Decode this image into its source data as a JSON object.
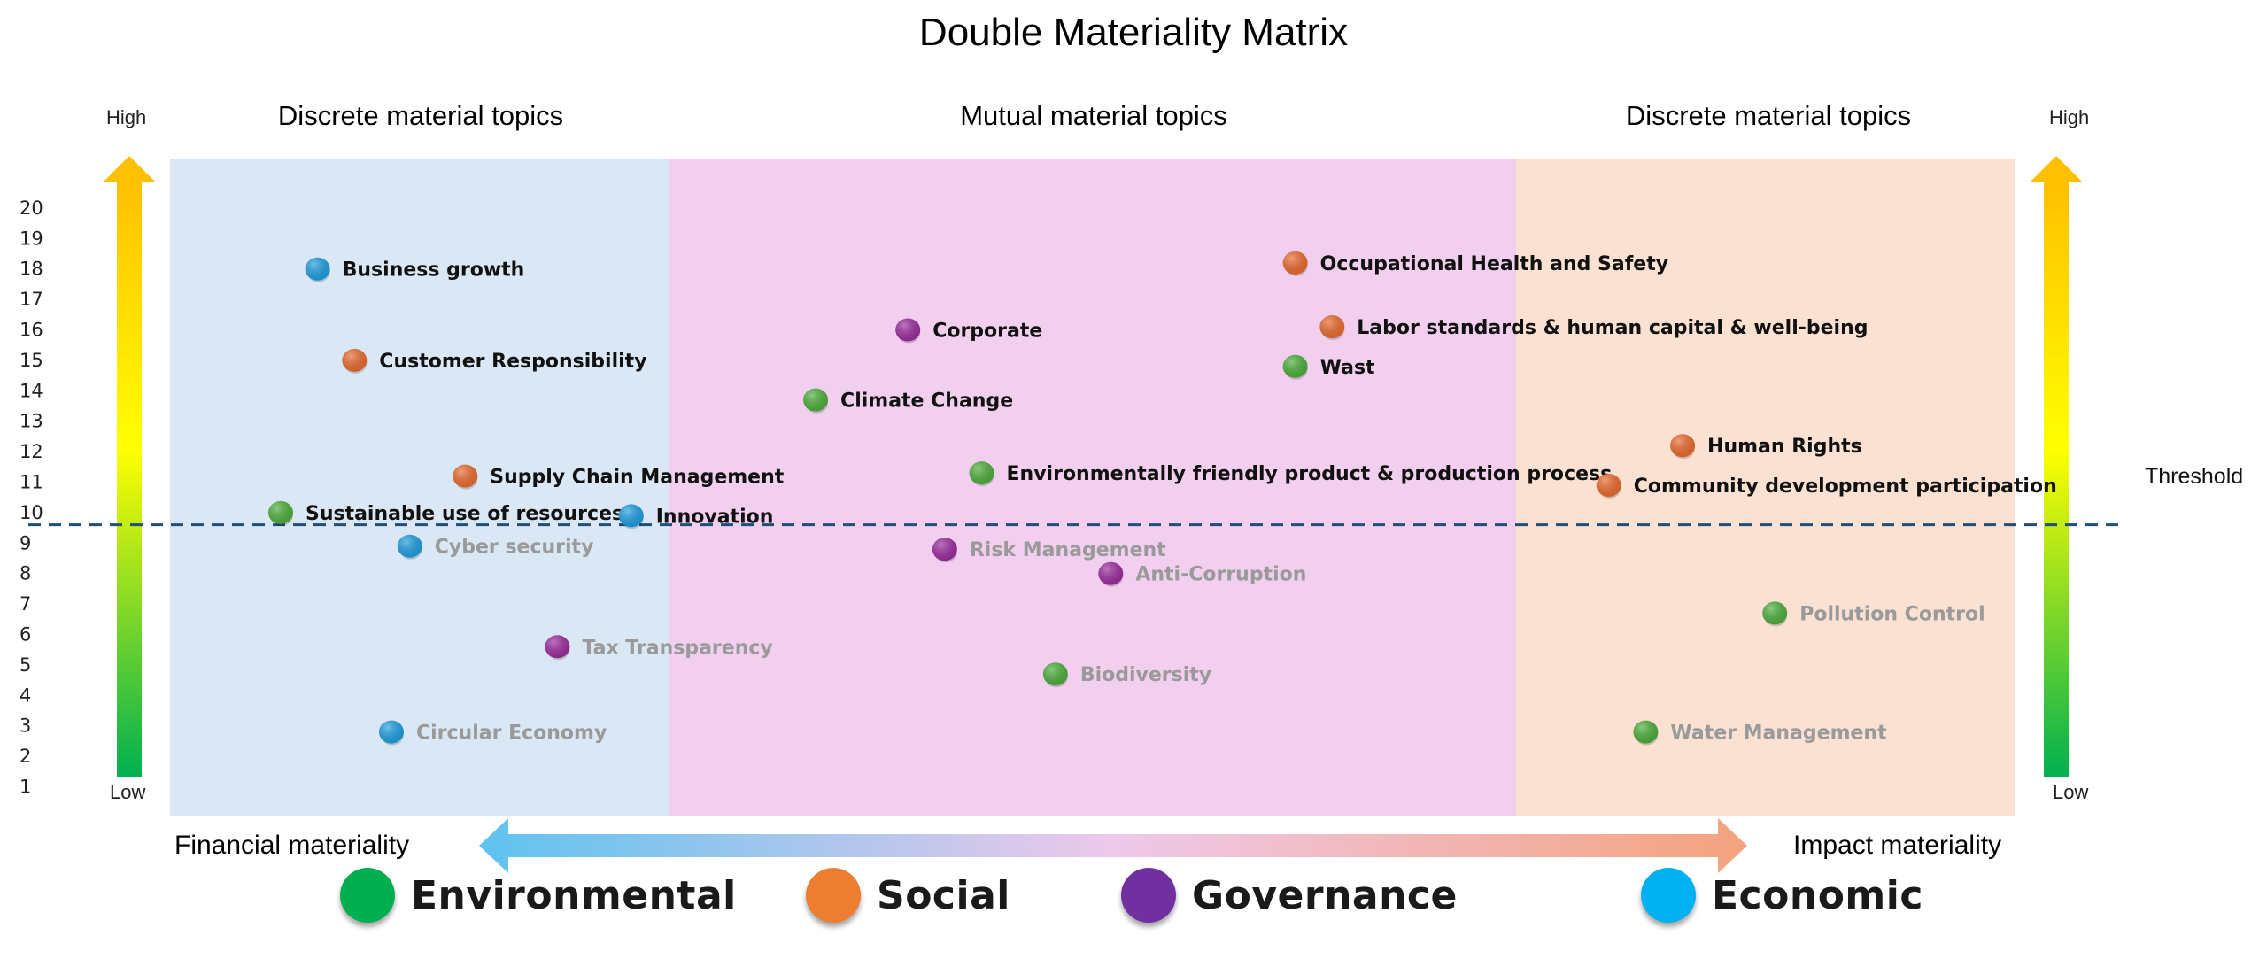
{
  "page": {
    "title": "Double Materiality Matrix",
    "zone_headers": {
      "left": "Discrete material topics",
      "center": "Mutual material topics",
      "right": "Discrete material topics"
    },
    "left_scale": {
      "high": "High",
      "low": "Low"
    },
    "right_scale": {
      "high": "High",
      "low": "Low"
    },
    "axis_left_label": "Financial materiality",
    "axis_right_label": "Impact materiality",
    "threshold_label": "Threshold",
    "legend": [
      {
        "name": "Environmental",
        "color": "#00b050"
      },
      {
        "name": "Social",
        "color": "#ed7d31"
      },
      {
        "name": "Governance",
        "color": "#7030a0"
      },
      {
        "name": "Economic",
        "color": "#00b0f0"
      }
    ]
  },
  "chart_data": {
    "type": "scatter",
    "title": "Double Materiality Matrix",
    "ylim": [
      0,
      20
    ],
    "yticks": [
      "1",
      "2",
      "3",
      "4",
      "5",
      "6",
      "7",
      "8",
      "9",
      "10",
      "11",
      "12",
      "13",
      "14",
      "15",
      "16",
      "17",
      "18",
      "19",
      "20"
    ],
    "threshold_y": 9.6,
    "x_range_note": "horizontal position reflects financial (left) vs impact (right) materiality",
    "points": [
      {
        "label": "Business growth",
        "category": "Economic",
        "x": 0.08,
        "y": 18.0,
        "above_threshold": true
      },
      {
        "label": "Customer Responsibility",
        "category": "Social",
        "x": 0.1,
        "y": 15.0,
        "above_threshold": true
      },
      {
        "label": "Supply Chain Management",
        "category": "Social",
        "x": 0.16,
        "y": 11.2,
        "above_threshold": true
      },
      {
        "label": "Sustainable use of resources",
        "category": "Environmental",
        "x": 0.06,
        "y": 10.0,
        "above_threshold": true
      },
      {
        "label": "Innovation",
        "category": "Economic",
        "x": 0.25,
        "y": 9.9,
        "above_threshold": true
      },
      {
        "label": "Cyber security",
        "category": "Economic",
        "x": 0.13,
        "y": 8.9,
        "above_threshold": false
      },
      {
        "label": "Tax Transparency",
        "category": "Governance",
        "x": 0.21,
        "y": 5.6,
        "above_threshold": false
      },
      {
        "label": "Circular Economy",
        "category": "Economic",
        "x": 0.12,
        "y": 2.8,
        "above_threshold": false
      },
      {
        "label": "Corporate",
        "category": "Governance",
        "x": 0.4,
        "y": 16.0,
        "above_threshold": true
      },
      {
        "label": "Climate Change",
        "category": "Environmental",
        "x": 0.35,
        "y": 13.7,
        "above_threshold": true
      },
      {
        "label": "Environmentally friendly product & production process",
        "category": "Environmental",
        "x": 0.44,
        "y": 11.3,
        "above_threshold": true
      },
      {
        "label": "Risk Management",
        "category": "Governance",
        "x": 0.42,
        "y": 8.8,
        "above_threshold": false
      },
      {
        "label": "Anti-Corruption",
        "category": "Governance",
        "x": 0.51,
        "y": 8.0,
        "above_threshold": false
      },
      {
        "label": "Biodiversity",
        "category": "Environmental",
        "x": 0.48,
        "y": 4.7,
        "above_threshold": false
      },
      {
        "label": "Occupational Health and Safety",
        "category": "Social",
        "x": 0.61,
        "y": 18.2,
        "above_threshold": true
      },
      {
        "label": "Labor standards & human capital & well-being",
        "category": "Social",
        "x": 0.63,
        "y": 16.1,
        "above_threshold": true
      },
      {
        "label": "Wast",
        "category": "Environmental",
        "x": 0.61,
        "y": 14.8,
        "above_threshold": true
      },
      {
        "label": "Human Rights",
        "category": "Social",
        "x": 0.82,
        "y": 12.2,
        "above_threshold": true
      },
      {
        "label": "Community development participation",
        "category": "Social",
        "x": 0.78,
        "y": 10.9,
        "above_threshold": true
      },
      {
        "label": "Pollution Control",
        "category": "Environmental",
        "x": 0.87,
        "y": 6.7,
        "above_threshold": false
      },
      {
        "label": "Water Management",
        "category": "Environmental",
        "x": 0.8,
        "y": 2.8,
        "above_threshold": false
      }
    ],
    "zones": [
      {
        "name": "Discrete material topics",
        "color": "#dae8f6"
      },
      {
        "name": "Mutual material topics",
        "color": "#f2cfee"
      },
      {
        "name": "Discrete material topics",
        "color": "#fbe1d2"
      }
    ],
    "colors": {
      "Environmental": "#4caf3a",
      "Social": "#ec6a2c",
      "Governance": "#9b2a9e",
      "Economic": "#1c9fe2",
      "label_above": "#111111",
      "label_below": "#9a9a9a",
      "threshold_line": "#1f4e79"
    }
  }
}
